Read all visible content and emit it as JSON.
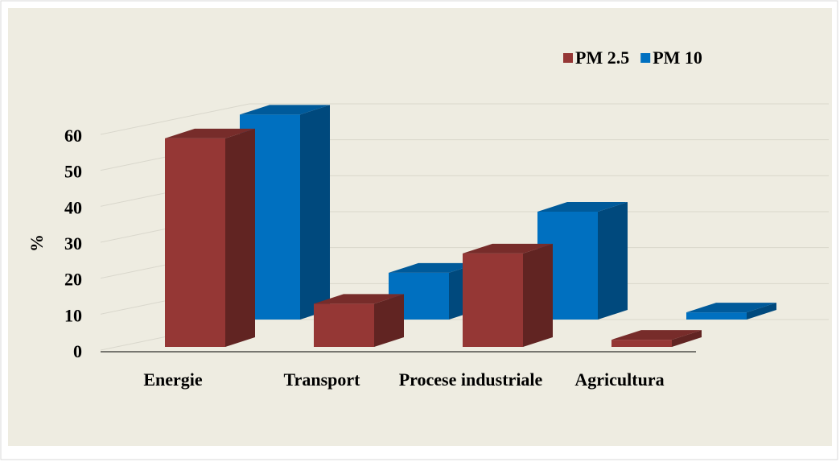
{
  "chart_data": {
    "type": "bar3d",
    "categories": [
      "Energie",
      "Transport",
      "Procese industriale",
      "Agricultura"
    ],
    "series": [
      {
        "name": "PM 2.5",
        "color": "#953735",
        "values": [
          58,
          12,
          26,
          2
        ]
      },
      {
        "name": "PM 10",
        "color": "#0070c0",
        "values": [
          57,
          13,
          30,
          2
        ]
      }
    ],
    "y_label": "%",
    "ylim": [
      0,
      60
    ],
    "yticks": [
      0,
      10,
      20,
      30,
      40,
      50,
      60
    ],
    "grid": true,
    "legend": "top-right"
  }
}
